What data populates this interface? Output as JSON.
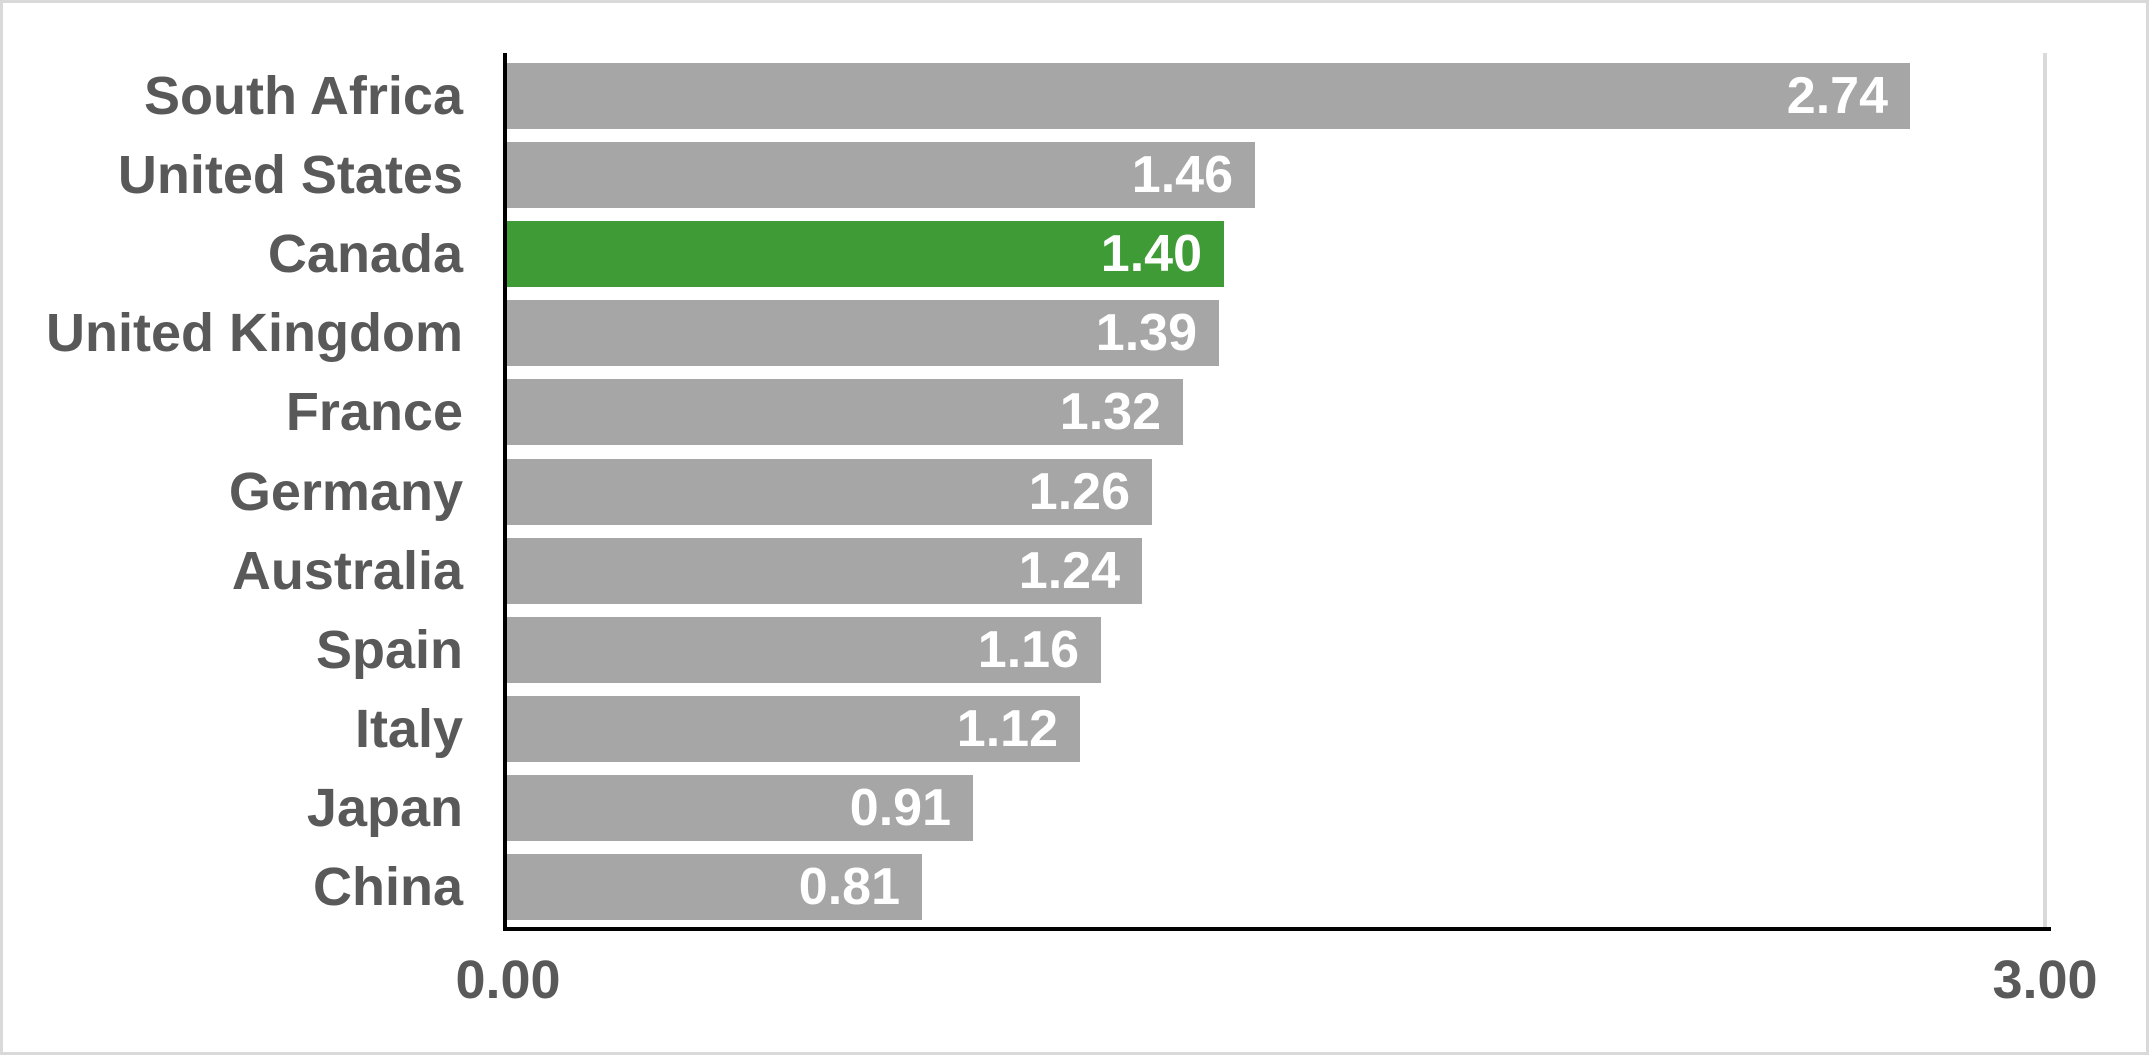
{
  "chart_data": {
    "type": "bar",
    "orientation": "horizontal",
    "title": "",
    "categories": [
      "South Africa",
      "United States",
      "Canada",
      "United Kingdom",
      "France",
      "Germany",
      "Australia",
      "Spain",
      "Italy",
      "Japan",
      "China"
    ],
    "values": [
      2.74,
      1.46,
      1.4,
      1.39,
      1.32,
      1.26,
      1.24,
      1.16,
      1.12,
      0.91,
      0.81
    ],
    "value_labels": [
      "2.74",
      "1.46",
      "1.40",
      "1.39",
      "1.32",
      "1.26",
      "1.24",
      "1.16",
      "1.12",
      "0.91",
      "0.81"
    ],
    "highlight_index": 2,
    "highlight_category": "Canada",
    "xlim": [
      0,
      3
    ],
    "x_ticks": [
      "0.00",
      "3.00"
    ],
    "grid": "single-vertical-gridline-at-max",
    "legend": "none",
    "colors": {
      "bar": "#a6a6a6",
      "highlight_bar": "#3e9b35",
      "category_label": "#595959",
      "value_label": "#ffffff",
      "axis_line": "#000000",
      "gridline": "#d9d9d9",
      "frame_border": "#d9d9d9",
      "background": "#ffffff"
    }
  }
}
